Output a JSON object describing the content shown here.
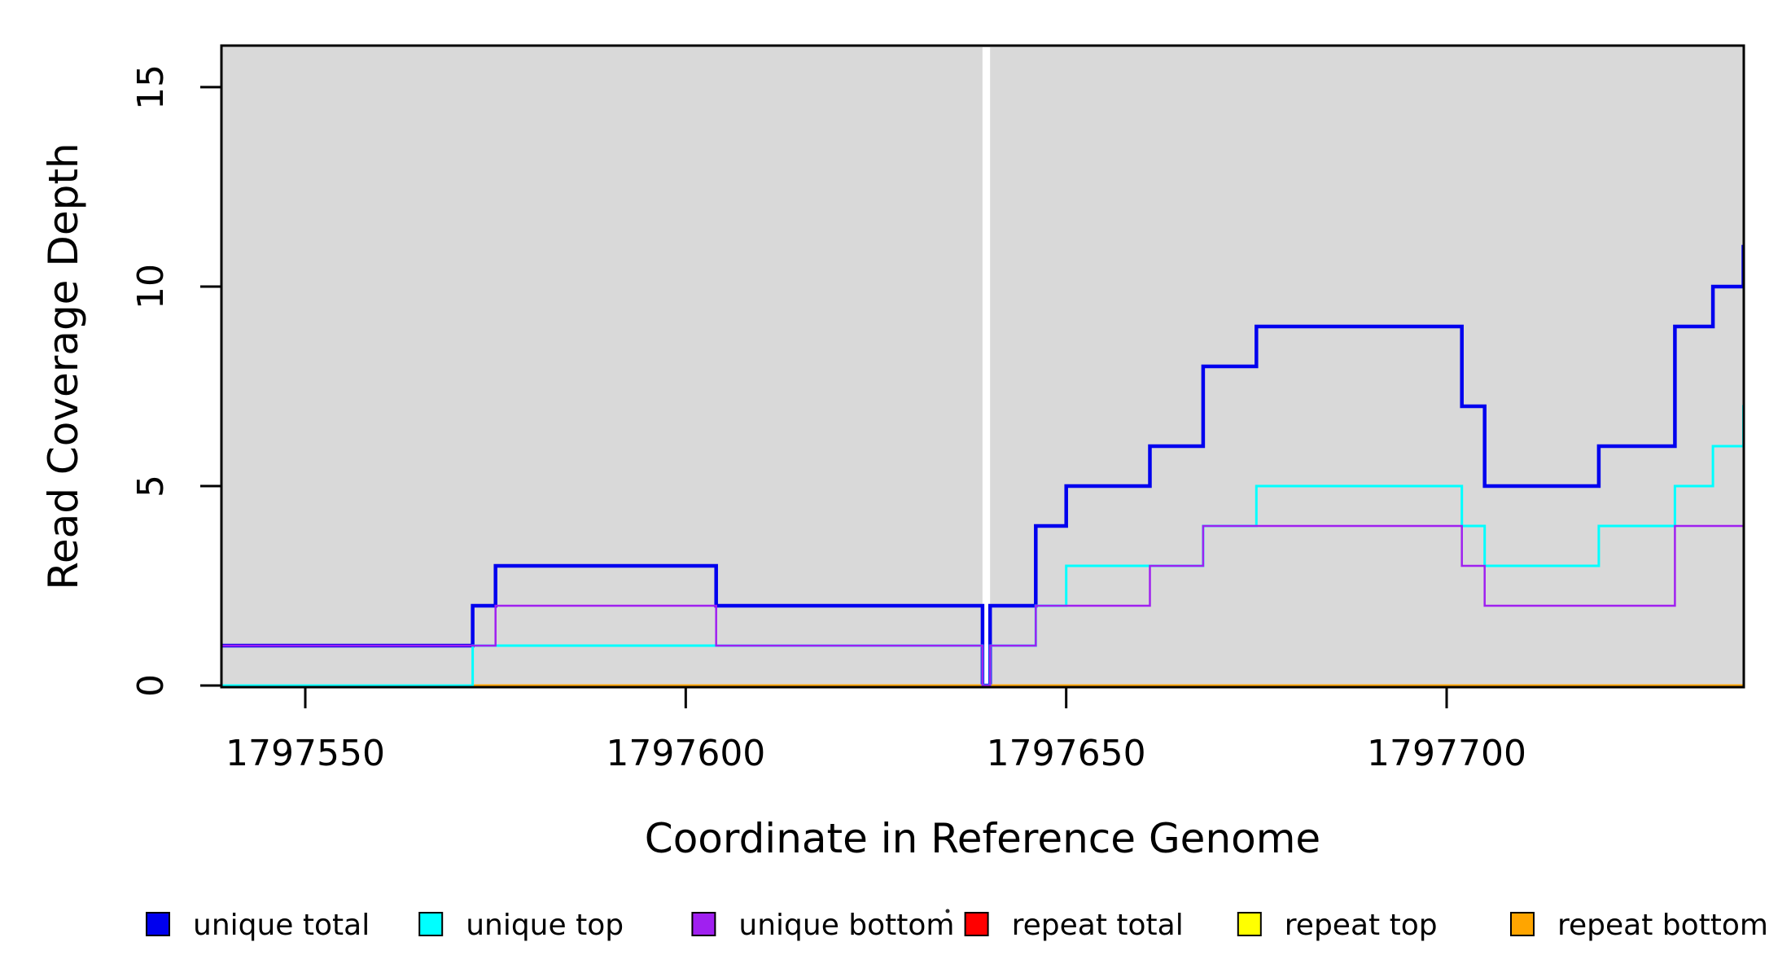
{
  "chart_data": {
    "type": "line",
    "subtype": "step",
    "title": "",
    "xlabel": "Coordinate in Reference Genome",
    "ylabel": "Read Coverage Depth",
    "xlim": [
      1797539,
      1797740
    ],
    "ylim": [
      0,
      16
    ],
    "x_ticks": [
      "1797550",
      "1797600",
      "1797650",
      "1797700"
    ],
    "x_tick_values": [
      1797550,
      1797600,
      1797650,
      1797700
    ],
    "y_ticks": [
      "0",
      "5",
      "10",
      "15"
    ],
    "y_tick_values": [
      0,
      5,
      10,
      15
    ],
    "grid": false,
    "legend_position": "bottom",
    "page_background_color": "#FFFFFF",
    "plot_background_color": "#D9D9D9",
    "axis_color": "#000000",
    "zero_coverage_gap": {
      "x_start": 1797639,
      "x_end": 1797640,
      "color": "#FFFFFF",
      "description": "white vertical band where all coverage drops to 0"
    },
    "series": [
      {
        "name": "unique total",
        "color": "#0000EE",
        "line_width": 4.5,
        "steps": [
          [
            1797539,
            1
          ],
          [
            1797572,
            2
          ],
          [
            1797575,
            3
          ],
          [
            1797604,
            2
          ],
          [
            1797639,
            0
          ],
          [
            1797640,
            2
          ],
          [
            1797646,
            4
          ],
          [
            1797650,
            5
          ],
          [
            1797661,
            6
          ],
          [
            1797668,
            8
          ],
          [
            1797675,
            9
          ],
          [
            1797702,
            7
          ],
          [
            1797705,
            5
          ],
          [
            1797720,
            6
          ],
          [
            1797730,
            9
          ],
          [
            1797735,
            10
          ],
          [
            1797739,
            11
          ]
        ]
      },
      {
        "name": "unique top",
        "color": "#00FFFF",
        "line_width": 3,
        "steps": [
          [
            1797539,
            0
          ],
          [
            1797572,
            1
          ],
          [
            1797639,
            0
          ],
          [
            1797640,
            1
          ],
          [
            1797646,
            2
          ],
          [
            1797650,
            3
          ],
          [
            1797668,
            4
          ],
          [
            1797675,
            5
          ],
          [
            1797702,
            4
          ],
          [
            1797705,
            3
          ],
          [
            1797720,
            4
          ],
          [
            1797730,
            5
          ],
          [
            1797735,
            6
          ],
          [
            1797739,
            7
          ]
        ]
      },
      {
        "name": "unique bottom",
        "color": "#A020F0",
        "line_width": 2.5,
        "steps": [
          [
            1797539,
            1
          ],
          [
            1797575,
            2
          ],
          [
            1797604,
            1
          ],
          [
            1797639,
            0
          ],
          [
            1797640,
            1
          ],
          [
            1797646,
            2
          ],
          [
            1797661,
            3
          ],
          [
            1797668,
            4
          ],
          [
            1797702,
            3
          ],
          [
            1797705,
            2
          ],
          [
            1797730,
            4
          ]
        ]
      },
      {
        "name": "repeat total",
        "color": "#FF0000",
        "line_width": 3,
        "steps": [
          [
            1797539,
            0
          ]
        ]
      },
      {
        "name": "repeat top",
        "color": "#FFFF00",
        "line_width": 3,
        "steps": [
          [
            1797539,
            0
          ]
        ]
      },
      {
        "name": "repeat bottom",
        "color": "#FFA500",
        "line_width": 3,
        "steps": [
          [
            1797539,
            0
          ]
        ]
      }
    ],
    "draw_order": [
      0,
      3,
      4,
      5,
      1,
      2
    ],
    "legend": [
      "unique total",
      "unique top",
      "unique bottom",
      "repeat total",
      "repeat top",
      "repeat bottom"
    ]
  }
}
